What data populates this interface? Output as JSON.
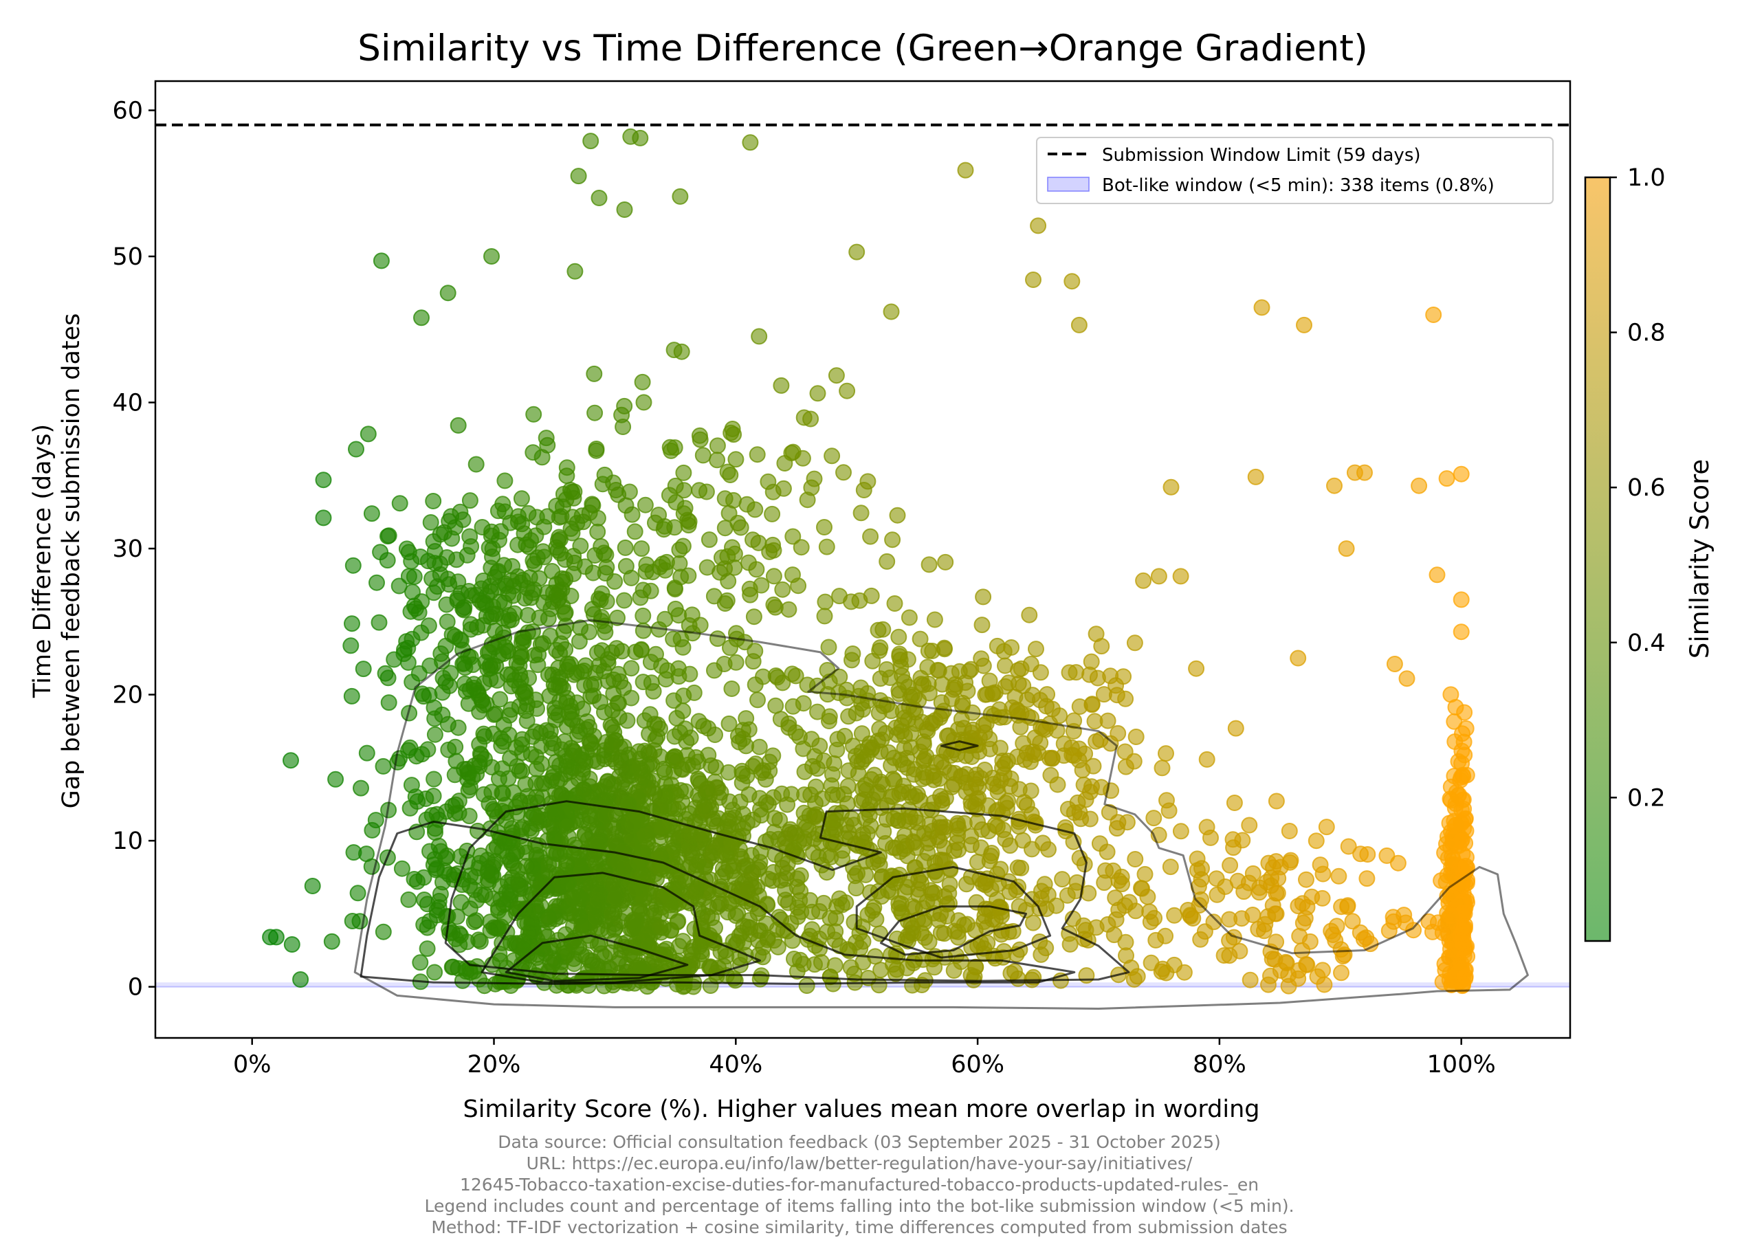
{
  "chart_data": {
    "type": "scatter",
    "title": "Similarity vs Time Difference (Green→Orange Gradient)",
    "xlabel": "Similarity Score (%). Higher values mean more overlap in wording",
    "ylabel_line1": "Time Difference (days)",
    "ylabel_line2": "Gap between feedback submission dates",
    "xlim": [
      -8,
      109
    ],
    "ylim": [
      -3.5,
      62
    ],
    "x_ticks": [
      0,
      20,
      40,
      60,
      80,
      100
    ],
    "x_tick_labels": [
      "0%",
      "20%",
      "40%",
      "60%",
      "80%",
      "100%"
    ],
    "y_ticks": [
      0,
      10,
      20,
      30,
      40,
      50,
      60
    ],
    "y_tick_labels": [
      "0",
      "10",
      "20",
      "30",
      "40",
      "50",
      "60"
    ],
    "reference_line": {
      "y": 59,
      "label": "Submission Window Limit (59 days)",
      "style": "dashed",
      "color": "#000000"
    },
    "bot_window": {
      "y_max_days": 0.0035,
      "label": "Bot-like window (<5 min): 338 items (0.8%)",
      "count": 338,
      "percent": 0.8,
      "color": "#8080ff"
    },
    "legend_position": "upper right",
    "colormap": {
      "name": "green-orange",
      "from": "#008000",
      "to": "#ffa500",
      "alpha": 0.6
    },
    "colorbar": {
      "label": "Similarity Score",
      "range": [
        0.0,
        1.0
      ],
      "ticks": [
        0.2,
        0.4,
        0.6,
        0.8,
        1.0
      ],
      "tick_labels": [
        "0.2",
        "0.4",
        "0.6",
        "0.8",
        "1.0"
      ]
    },
    "notable_points": [
      {
        "x": 1.5,
        "y": 3.4
      },
      {
        "x": 2.0,
        "y": 3.4
      },
      {
        "x": 3.3,
        "y": 2.9
      },
      {
        "x": 3.2,
        "y": 15.5
      },
      {
        "x": 4.0,
        "y": 0.5
      },
      {
        "x": 5.0,
        "y": 6.9
      },
      {
        "x": 5.9,
        "y": 34.7
      },
      {
        "x": 5.9,
        "y": 32.1
      },
      {
        "x": 6.6,
        "y": 3.1
      },
      {
        "x": 6.9,
        "y": 14.2
      },
      {
        "x": 8.3,
        "y": 4.5
      },
      {
        "x": 8.4,
        "y": 9.2
      },
      {
        "x": 8.6,
        "y": 36.8
      },
      {
        "x": 9.0,
        "y": 13.6
      },
      {
        "x": 9.5,
        "y": 16.0
      },
      {
        "x": 9.9,
        "y": 32.4
      },
      {
        "x": 10.7,
        "y": 49.7
      },
      {
        "x": 11.2,
        "y": 29.2
      },
      {
        "x": 14.0,
        "y": 45.8
      },
      {
        "x": 16.2,
        "y": 47.5
      },
      {
        "x": 19.8,
        "y": 50.0
      },
      {
        "x": 28.0,
        "y": 57.9
      },
      {
        "x": 27.0,
        "y": 55.5
      },
      {
        "x": 28.7,
        "y": 54.0
      },
      {
        "x": 31.3,
        "y": 58.2
      },
      {
        "x": 32.1,
        "y": 58.1
      },
      {
        "x": 30.8,
        "y": 53.2
      },
      {
        "x": 35.4,
        "y": 54.1
      },
      {
        "x": 41.2,
        "y": 57.8
      },
      {
        "x": 50.0,
        "y": 50.3
      },
      {
        "x": 59.0,
        "y": 55.9
      },
      {
        "x": 65.0,
        "y": 52.1
      },
      {
        "x": 64.6,
        "y": 48.4
      },
      {
        "x": 67.8,
        "y": 48.3
      },
      {
        "x": 68.4,
        "y": 45.3
      },
      {
        "x": 83.5,
        "y": 46.5
      },
      {
        "x": 87.0,
        "y": 45.3
      },
      {
        "x": 97.7,
        "y": 46.0
      },
      {
        "x": 83.0,
        "y": 34.9
      },
      {
        "x": 89.5,
        "y": 34.3
      },
      {
        "x": 91.2,
        "y": 35.2
      },
      {
        "x": 92.0,
        "y": 35.2
      },
      {
        "x": 96.5,
        "y": 34.3
      },
      {
        "x": 98.8,
        "y": 34.8
      },
      {
        "x": 100.0,
        "y": 35.1
      },
      {
        "x": 86.5,
        "y": 22.5
      },
      {
        "x": 94.5,
        "y": 22.1
      },
      {
        "x": 95.5,
        "y": 21.1
      },
      {
        "x": 98.0,
        "y": 28.2
      },
      {
        "x": 90.5,
        "y": 30.0
      },
      {
        "x": 75.0,
        "y": 28.1
      },
      {
        "x": 76.8,
        "y": 28.1
      },
      {
        "x": 76.0,
        "y": 34.2
      },
      {
        "x": 73.7,
        "y": 27.8
      },
      {
        "x": 100.0,
        "y": 26.5
      },
      {
        "x": 100.0,
        "y": 24.3
      }
    ],
    "density_clusters": [
      {
        "x_center": 30,
        "x_spread": 7.5,
        "y_center": 8.2,
        "y_spread": 5.2,
        "weight": 0.45
      },
      {
        "x_center": 22,
        "x_spread": 6.0,
        "y_center": 25.5,
        "y_spread": 5.0,
        "weight": 0.13
      },
      {
        "x_center": 38,
        "x_spread": 8.5,
        "y_center": 30.0,
        "y_spread": 6.5,
        "weight": 0.07
      },
      {
        "x_center": 55,
        "x_spread": 8.0,
        "y_center": 9.0,
        "y_spread": 5.5,
        "weight": 0.17
      },
      {
        "x_center": 60,
        "x_spread": 7.0,
        "y_center": 18.5,
        "y_spread": 3.0,
        "weight": 0.07
      },
      {
        "x_center": 85,
        "x_spread": 8.0,
        "y_center": 4.5,
        "y_spread": 3.5,
        "weight": 0.05
      },
      {
        "x_center": 99.8,
        "x_spread": 0.6,
        "y_center": 5.0,
        "y_spread": 6.0,
        "weight": 0.06
      }
    ],
    "kde_contours": [
      {
        "level": 1,
        "points": [
          [
            8.5,
            1
          ],
          [
            9.5,
            6
          ],
          [
            11,
            11
          ],
          [
            12,
            16
          ],
          [
            13.5,
            20.5
          ],
          [
            17,
            22.8
          ],
          [
            22,
            24.3
          ],
          [
            28,
            25.1
          ],
          [
            36,
            24.3
          ],
          [
            42,
            23.6
          ],
          [
            47,
            22.9
          ],
          [
            48.5,
            21.8
          ],
          [
            46,
            20.2
          ],
          [
            49,
            20.0
          ],
          [
            55,
            19.2
          ],
          [
            64,
            18.3
          ],
          [
            70,
            17.5
          ],
          [
            71.5,
            16.5
          ],
          [
            71,
            14.5
          ],
          [
            70.5,
            12.5
          ],
          [
            73,
            11.8
          ],
          [
            74.5,
            10.5
          ],
          [
            75,
            9.5
          ],
          [
            77,
            9.0
          ],
          [
            78,
            6.0
          ],
          [
            81,
            3.5
          ],
          [
            86,
            2.3
          ],
          [
            92,
            2.5
          ],
          [
            96,
            4.0
          ],
          [
            99,
            6.8
          ],
          [
            101.5,
            8.2
          ],
          [
            103,
            7.7
          ],
          [
            103.5,
            5.0
          ],
          [
            104.5,
            3.0
          ],
          [
            105.5,
            0.8
          ],
          [
            104,
            -0.2
          ],
          [
            98,
            -0.3
          ],
          [
            95,
            -0.5
          ],
          [
            85,
            -1.1
          ],
          [
            70,
            -1.5
          ],
          [
            58,
            -1.4
          ],
          [
            45,
            -1.4
          ],
          [
            30,
            -1.4
          ],
          [
            20,
            -1.2
          ],
          [
            12,
            -0.6
          ],
          [
            8.5,
            1
          ]
        ]
      },
      {
        "level": 2,
        "points": [
          [
            9,
            0.7
          ],
          [
            15,
            0.3
          ],
          [
            25,
            0.2
          ],
          [
            35,
            0.3
          ],
          [
            45,
            0.2
          ],
          [
            55,
            0.3
          ],
          [
            65,
            0.3
          ],
          [
            68,
            1.0
          ],
          [
            62,
            1.8
          ],
          [
            55,
            1.8
          ],
          [
            49,
            2.2
          ],
          [
            45,
            3.5
          ],
          [
            42,
            5.5
          ],
          [
            38,
            7.0
          ],
          [
            34,
            8.5
          ],
          [
            30,
            9.2
          ],
          [
            24,
            9.8
          ],
          [
            19,
            10.8
          ],
          [
            15,
            11.3
          ],
          [
            12,
            10.5
          ],
          [
            10.5,
            7.5
          ],
          [
            9.5,
            3.5
          ],
          [
            9,
            0.7
          ]
        ]
      },
      {
        "level": 2,
        "points": [
          [
            18,
            9.5
          ],
          [
            21,
            12.0
          ],
          [
            26,
            12.7
          ],
          [
            32,
            12.0
          ],
          [
            38,
            10.6
          ],
          [
            43,
            9.5
          ],
          [
            48,
            8.0
          ],
          [
            52,
            9.2
          ],
          [
            47,
            10.2
          ],
          [
            47.5,
            12.0
          ],
          [
            54,
            12.2
          ],
          [
            62,
            11.7
          ],
          [
            68,
            10.5
          ],
          [
            69,
            8.5
          ],
          [
            68.5,
            6.0
          ],
          [
            67.0,
            4.0
          ],
          [
            70,
            2.8
          ],
          [
            72.5,
            1.0
          ],
          [
            70,
            0.5
          ],
          [
            60,
            0.4
          ],
          [
            50,
            0.5
          ],
          [
            42,
            0.8
          ],
          [
            33,
            0.8
          ],
          [
            25,
            0.9
          ],
          [
            18,
            1.5
          ],
          [
            16,
            3.0
          ],
          [
            16.5,
            6.0
          ],
          [
            18,
            9.5
          ]
        ]
      },
      {
        "level": 3,
        "points": [
          [
            19,
            1.0
          ],
          [
            22,
            5.0
          ],
          [
            25,
            7.5
          ],
          [
            29,
            7.8
          ],
          [
            34,
            6.8
          ],
          [
            36.5,
            5.5
          ],
          [
            37,
            3.5
          ],
          [
            40,
            2.5
          ],
          [
            42,
            1.8
          ],
          [
            38,
            0.8
          ],
          [
            30,
            0.3
          ],
          [
            24,
            0.3
          ],
          [
            19,
            1.0
          ]
        ]
      },
      {
        "level": 3,
        "points": [
          [
            50,
            5.5
          ],
          [
            53,
            7.5
          ],
          [
            58,
            8.2
          ],
          [
            63,
            7.2
          ],
          [
            65,
            5.5
          ],
          [
            66,
            3.5
          ],
          [
            63,
            2.5
          ],
          [
            57,
            2.0
          ],
          [
            54,
            2.8
          ],
          [
            50,
            4.0
          ],
          [
            50,
            5.5
          ]
        ]
      },
      {
        "level": 4,
        "points": [
          [
            21,
            1.0
          ],
          [
            24,
            3.0
          ],
          [
            28,
            3.5
          ],
          [
            32,
            2.6
          ],
          [
            36,
            1.5
          ],
          [
            32,
            0.6
          ],
          [
            25,
            0.4
          ],
          [
            21,
            1.0
          ]
        ]
      },
      {
        "level": 4,
        "points": [
          [
            53.5,
            4.5
          ],
          [
            57,
            5.5
          ],
          [
            61,
            5.5
          ],
          [
            64,
            5.0
          ],
          [
            63.5,
            4.2
          ],
          [
            61,
            3.8
          ],
          [
            58,
            2.5
          ],
          [
            54,
            2.2
          ],
          [
            52,
            3.0
          ],
          [
            53.5,
            4.5
          ]
        ]
      },
      {
        "level": 4,
        "points": [
          [
            57,
            16.5
          ],
          [
            58.5,
            16.8
          ],
          [
            60,
            16.5
          ],
          [
            58.5,
            16.2
          ],
          [
            57,
            16.5
          ]
        ]
      }
    ]
  },
  "footer": {
    "line1": "Data source: Official consultation feedback (03 September 2025 - 31 October 2025)",
    "line2": "URL: https://ec.europa.eu/info/law/better-regulation/have-your-say/initiatives/",
    "line3": "12645-Tobacco-taxation-excise-duties-for-manufactured-tobacco-products-updated-rules-_en",
    "line4": "Legend includes count and percentage of items falling into the bot-like submission window (<5 min).",
    "line5": "Method: TF-IDF vectorization + cosine similarity, time differences computed from submission dates"
  }
}
